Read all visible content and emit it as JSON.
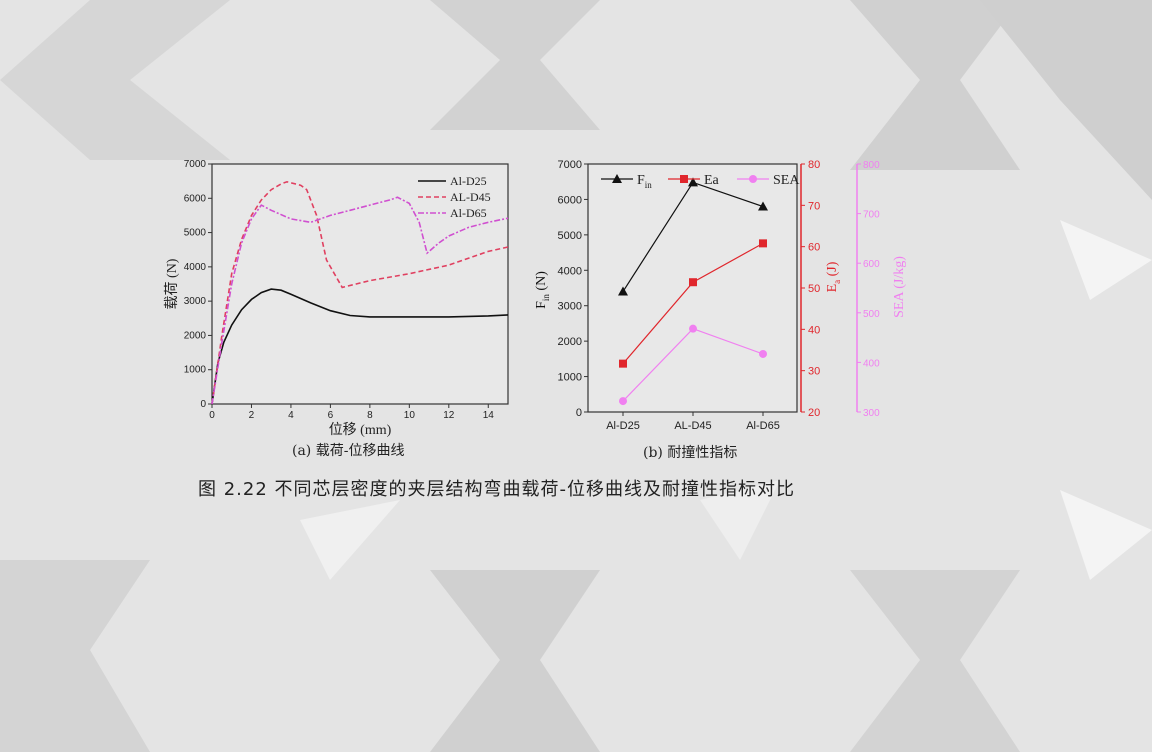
{
  "caption": "图 2.22  不同芯层密度的夹层结构弯曲载荷-位移曲线及耐撞性指标对比",
  "colors": {
    "black": "#111111",
    "red": "#e0262c",
    "pink": "#e070e0",
    "d45": "#e04060",
    "d65": "#d050d0",
    "background": "#e4e4e4"
  },
  "chart_data": [
    {
      "type": "line",
      "title": "(a) 载荷-位移曲线",
      "xlabel": "位移 (mm)",
      "ylabel": "载荷 (N)",
      "xlim": [
        0,
        15
      ],
      "ylim": [
        0,
        7000
      ],
      "xticks": [
        0,
        2,
        4,
        6,
        8,
        10,
        12,
        14
      ],
      "yticks": [
        0,
        1000,
        2000,
        3000,
        4000,
        5000,
        6000,
        7000
      ],
      "legend_position": "top-right",
      "series": [
        {
          "name": "Al-D25",
          "style": "solid",
          "color": "#111111",
          "x": [
            0,
            0.3,
            0.6,
            1,
            1.5,
            2,
            2.5,
            3,
            3.5,
            4,
            5,
            6,
            7,
            8,
            10,
            12,
            14,
            15
          ],
          "y": [
            0,
            1200,
            1800,
            2300,
            2750,
            3050,
            3250,
            3350,
            3320,
            3200,
            2950,
            2720,
            2580,
            2540,
            2540,
            2540,
            2570,
            2600
          ]
        },
        {
          "name": "AL-D45",
          "style": "dashed",
          "color": "#e04060",
          "x": [
            0,
            0.5,
            1,
            1.5,
            2,
            2.5,
            3,
            3.5,
            3.8,
            4.5,
            4.8,
            5.3,
            5.8,
            6.6,
            8,
            10,
            12,
            14,
            15
          ],
          "y": [
            0,
            2000,
            3800,
            4800,
            5500,
            5950,
            6250,
            6420,
            6480,
            6380,
            6250,
            5500,
            4200,
            3400,
            3600,
            3800,
            4050,
            4450,
            4580
          ]
        },
        {
          "name": "Al-D65",
          "style": "dash-dot",
          "color": "#d050d0",
          "x": [
            0,
            0.5,
            1,
            1.5,
            2,
            2.5,
            3,
            4,
            5,
            6,
            7,
            8,
            9,
            9.4,
            10,
            10.5,
            10.9,
            11.5,
            12,
            13,
            14,
            15
          ],
          "y": [
            0,
            1800,
            3500,
            4700,
            5400,
            5800,
            5650,
            5400,
            5300,
            5500,
            5650,
            5800,
            5950,
            6030,
            5850,
            5300,
            4400,
            4700,
            4900,
            5150,
            5300,
            5420
          ]
        }
      ]
    },
    {
      "type": "line",
      "title": "(b) 耐撞性指标",
      "categories": [
        "Al-D25",
        "AL-D45",
        "Al-D65"
      ],
      "legend_position": "top",
      "axes": [
        {
          "label_main": "F",
          "label_sub": "in",
          "label_unit": " (N)",
          "side": "left",
          "ylim": [
            0,
            7000
          ],
          "yticks": [
            0,
            1000,
            2000,
            3000,
            4000,
            5000,
            6000,
            7000
          ],
          "color": "#111111"
        },
        {
          "label_main": "E",
          "label_sub": "a",
          "label_unit": " (J)",
          "side": "right",
          "ylim": [
            20,
            80
          ],
          "yticks": [
            20,
            30,
            40,
            50,
            60,
            70,
            80
          ],
          "color": "#e0262c"
        },
        {
          "label_main": "SEA",
          "label_sub": "",
          "label_unit": " (J/kg)",
          "side": "right-outer",
          "ylim": [
            300,
            800
          ],
          "yticks": [
            300,
            400,
            500,
            600,
            700,
            800
          ],
          "color": "#f080f0"
        }
      ],
      "series": [
        {
          "name": "F",
          "name_sub": "in",
          "marker": "triangle",
          "axis": 0,
          "color": "#111111",
          "values": [
            3400,
            6480,
            5800
          ]
        },
        {
          "name": "Ea",
          "name_sub": "",
          "marker": "square",
          "axis": 1,
          "color": "#e0262c",
          "values": [
            31.7,
            51.4,
            60.8
          ]
        },
        {
          "name": "SEA",
          "name_sub": "",
          "marker": "circle",
          "axis": 2,
          "color": "#f080f0",
          "values": [
            322,
            468,
            417
          ]
        }
      ]
    }
  ]
}
